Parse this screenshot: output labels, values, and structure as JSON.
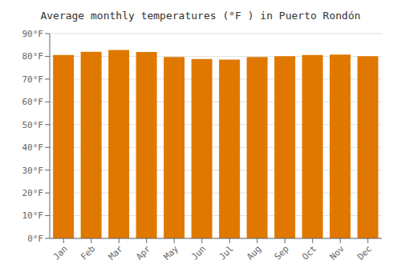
{
  "chart_data": {
    "type": "bar",
    "title": "Average monthly temperatures (°F ) in Puerto Rondón",
    "categories": [
      "Jan",
      "Feb",
      "Mar",
      "Apr",
      "May",
      "Jun",
      "Jul",
      "Aug",
      "Sep",
      "Oct",
      "Nov",
      "Dec"
    ],
    "values": [
      80.6,
      82.0,
      82.8,
      81.9,
      79.7,
      78.8,
      78.6,
      79.7,
      80.1,
      80.6,
      80.8,
      80.1
    ],
    "color": "#E07800",
    "ylim": [
      0,
      90
    ],
    "yticks": [
      {
        "value": 0,
        "label": "0°F"
      },
      {
        "value": 10,
        "label": "10°F"
      },
      {
        "value": 20,
        "label": "20°F"
      },
      {
        "value": 30,
        "label": "30°F"
      },
      {
        "value": 40,
        "label": "40°F"
      },
      {
        "value": 50,
        "label": "50°F"
      },
      {
        "value": 60,
        "label": "60°F"
      },
      {
        "value": 70,
        "label": "70°F"
      },
      {
        "value": 80,
        "label": "80°F"
      },
      {
        "value": 90,
        "label": "90°F"
      }
    ],
    "grid": true
  }
}
